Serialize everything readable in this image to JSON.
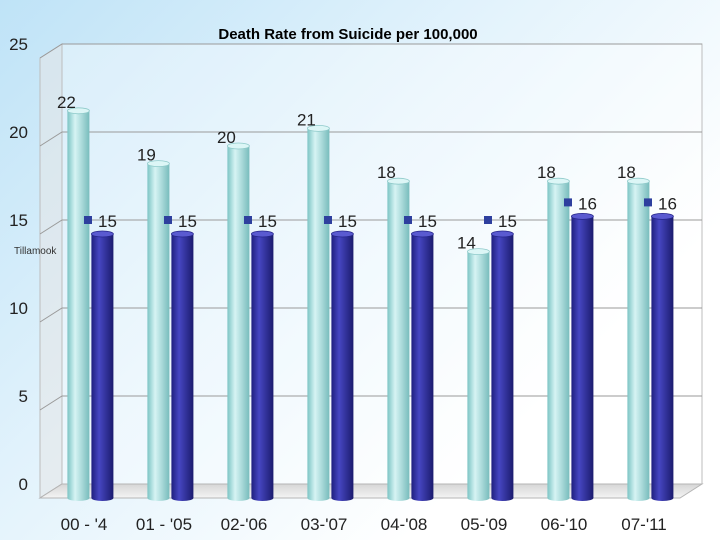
{
  "chart_data": {
    "type": "bar",
    "title": "Death Rate from Suicide per 100,000",
    "xlabel": "",
    "ylabel": "",
    "ylim": [
      0,
      25
    ],
    "yticks": [
      0,
      5,
      10,
      15,
      20,
      25
    ],
    "categories": [
      "00 - '4",
      "01 - '05",
      "02-'06",
      "03-'07",
      "04-'08",
      "05-'09",
      "06-'10",
      "07-'11"
    ],
    "series": [
      {
        "values": [
          22,
          19,
          20,
          21,
          18,
          14,
          18,
          18
        ],
        "color": "#a6dede"
      },
      {
        "values": [
          15,
          15,
          15,
          15,
          15,
          15,
          16,
          16
        ],
        "color": "#2e2e9a"
      }
    ],
    "markers": {
      "values": [
        15,
        15,
        15,
        15,
        15,
        15,
        16,
        16
      ],
      "color": "#2e3f9e"
    },
    "annotation": "Tillamook",
    "grid": true,
    "legend": "none"
  }
}
